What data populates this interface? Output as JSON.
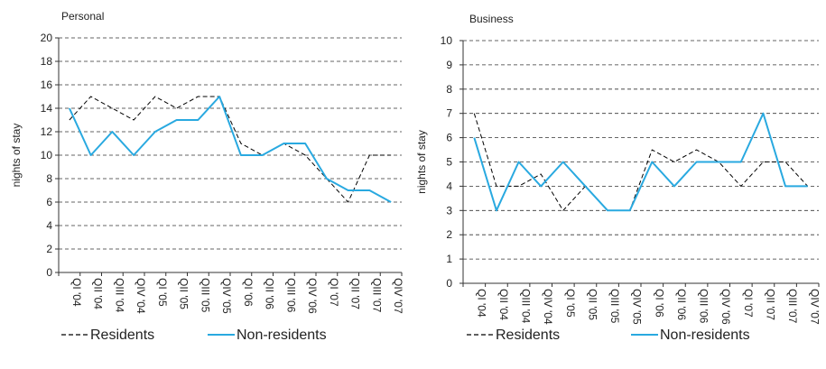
{
  "chart_data": [
    {
      "type": "line",
      "title": "Personal",
      "ylabel": "nights of stay",
      "xlabel": "",
      "ylim": [
        0,
        20
      ],
      "yticks": [
        0,
        2,
        4,
        6,
        8,
        10,
        12,
        14,
        16,
        18,
        20
      ],
      "grid": true,
      "categories": [
        "QI '04",
        "QII '04",
        "QIII '04",
        "QIV '04",
        "QI '05",
        "QII '05",
        "QIII '05",
        "QIV '05",
        "QI '06",
        "QII '06",
        "QIII '06",
        "QIV '06",
        "QI '07",
        "QII '07",
        "QIII '07",
        "QIV '07"
      ],
      "series": [
        {
          "name": "Residents",
          "color": "#000000",
          "style": "dashed",
          "values": [
            13,
            15,
            14,
            13,
            15,
            14,
            15,
            15,
            11,
            10,
            11,
            10,
            8,
            6,
            10,
            10
          ]
        },
        {
          "name": "Non-residents",
          "color": "#29a9e0",
          "style": "solid",
          "values": [
            14,
            10,
            12,
            10,
            12,
            13,
            13,
            15,
            10,
            10,
            11,
            11,
            8,
            7,
            7,
            6
          ]
        }
      ],
      "legend": "bottom"
    },
    {
      "type": "line",
      "title": "Business",
      "ylabel": "nights of stay",
      "xlabel": "",
      "ylim": [
        0,
        10
      ],
      "yticks": [
        0,
        1,
        2,
        3,
        4,
        5,
        6,
        7,
        8,
        9,
        10
      ],
      "grid": true,
      "categories": [
        "QI '04",
        "QII '04",
        "QIII '04",
        "QIV '04",
        "QI '05",
        "QII '05",
        "QIII '05",
        "QIV '05",
        "QI '06",
        "QII '06",
        "QIII '06",
        "QIV '06",
        "QI '07",
        "QII '07",
        "QIII '07",
        "QIV '07"
      ],
      "series": [
        {
          "name": "Residents",
          "color": "#000000",
          "style": "dashed",
          "values": [
            7,
            4,
            4,
            4.5,
            3,
            4,
            3,
            3,
            5.5,
            5,
            5.5,
            5,
            4,
            5,
            5,
            4
          ]
        },
        {
          "name": "Non-residents",
          "color": "#29a9e0",
          "style": "solid",
          "values": [
            6,
            3,
            5,
            4,
            5,
            4,
            3,
            3,
            5,
            4,
            5,
            5,
            5,
            7,
            4,
            4
          ]
        }
      ],
      "legend": "bottom"
    }
  ]
}
